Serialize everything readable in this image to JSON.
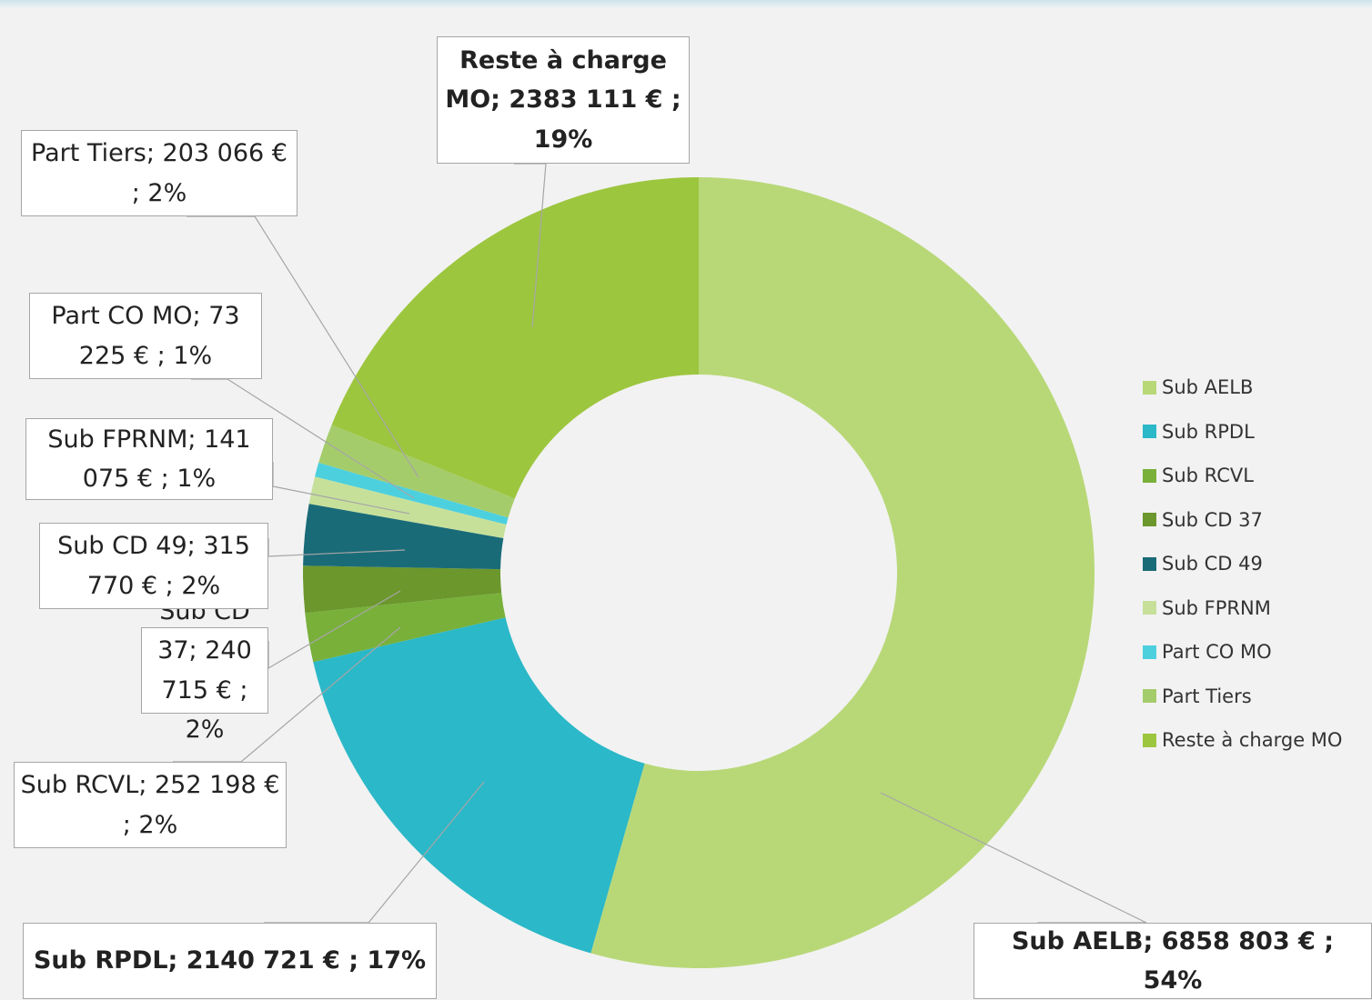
{
  "chart_data": {
    "type": "donut",
    "categories": [
      "Sub AELB",
      "Sub RPDL",
      "Sub RCVL",
      "Sub CD 37",
      "Sub CD 49",
      "Sub FPRNM",
      "Part CO MO",
      "Part Tiers",
      "Reste à charge MO"
    ],
    "values": [
      6858803,
      2140721,
      252198,
      240715,
      315770,
      141075,
      73225,
      203066,
      2383111
    ],
    "value_labels": [
      "Sub AELB;  6858 803 € ; 54%",
      "Sub RPDL;  2140 721 € ; 17%",
      "Sub RCVL;  252 198 € ; 2%",
      "Sub CD 37;  240 715 € ; 2%",
      "Sub CD 49;  315 770 € ; 2%",
      "Sub FPRNM;  141 075 € ; 1%",
      "Part CO MO;  73 225 € ; 1%",
      "Part Tiers;  203 066 € ; 2%",
      "Reste à charge MO;  2383 111 € ; 19%"
    ],
    "colors": [
      "#b8d878",
      "#2bb8c8",
      "#78b03a",
      "#6b972c",
      "#1a6b78",
      "#c6e09a",
      "#4dd0de",
      "#a5cc6b",
      "#9dc63f"
    ],
    "legend": "right"
  }
}
